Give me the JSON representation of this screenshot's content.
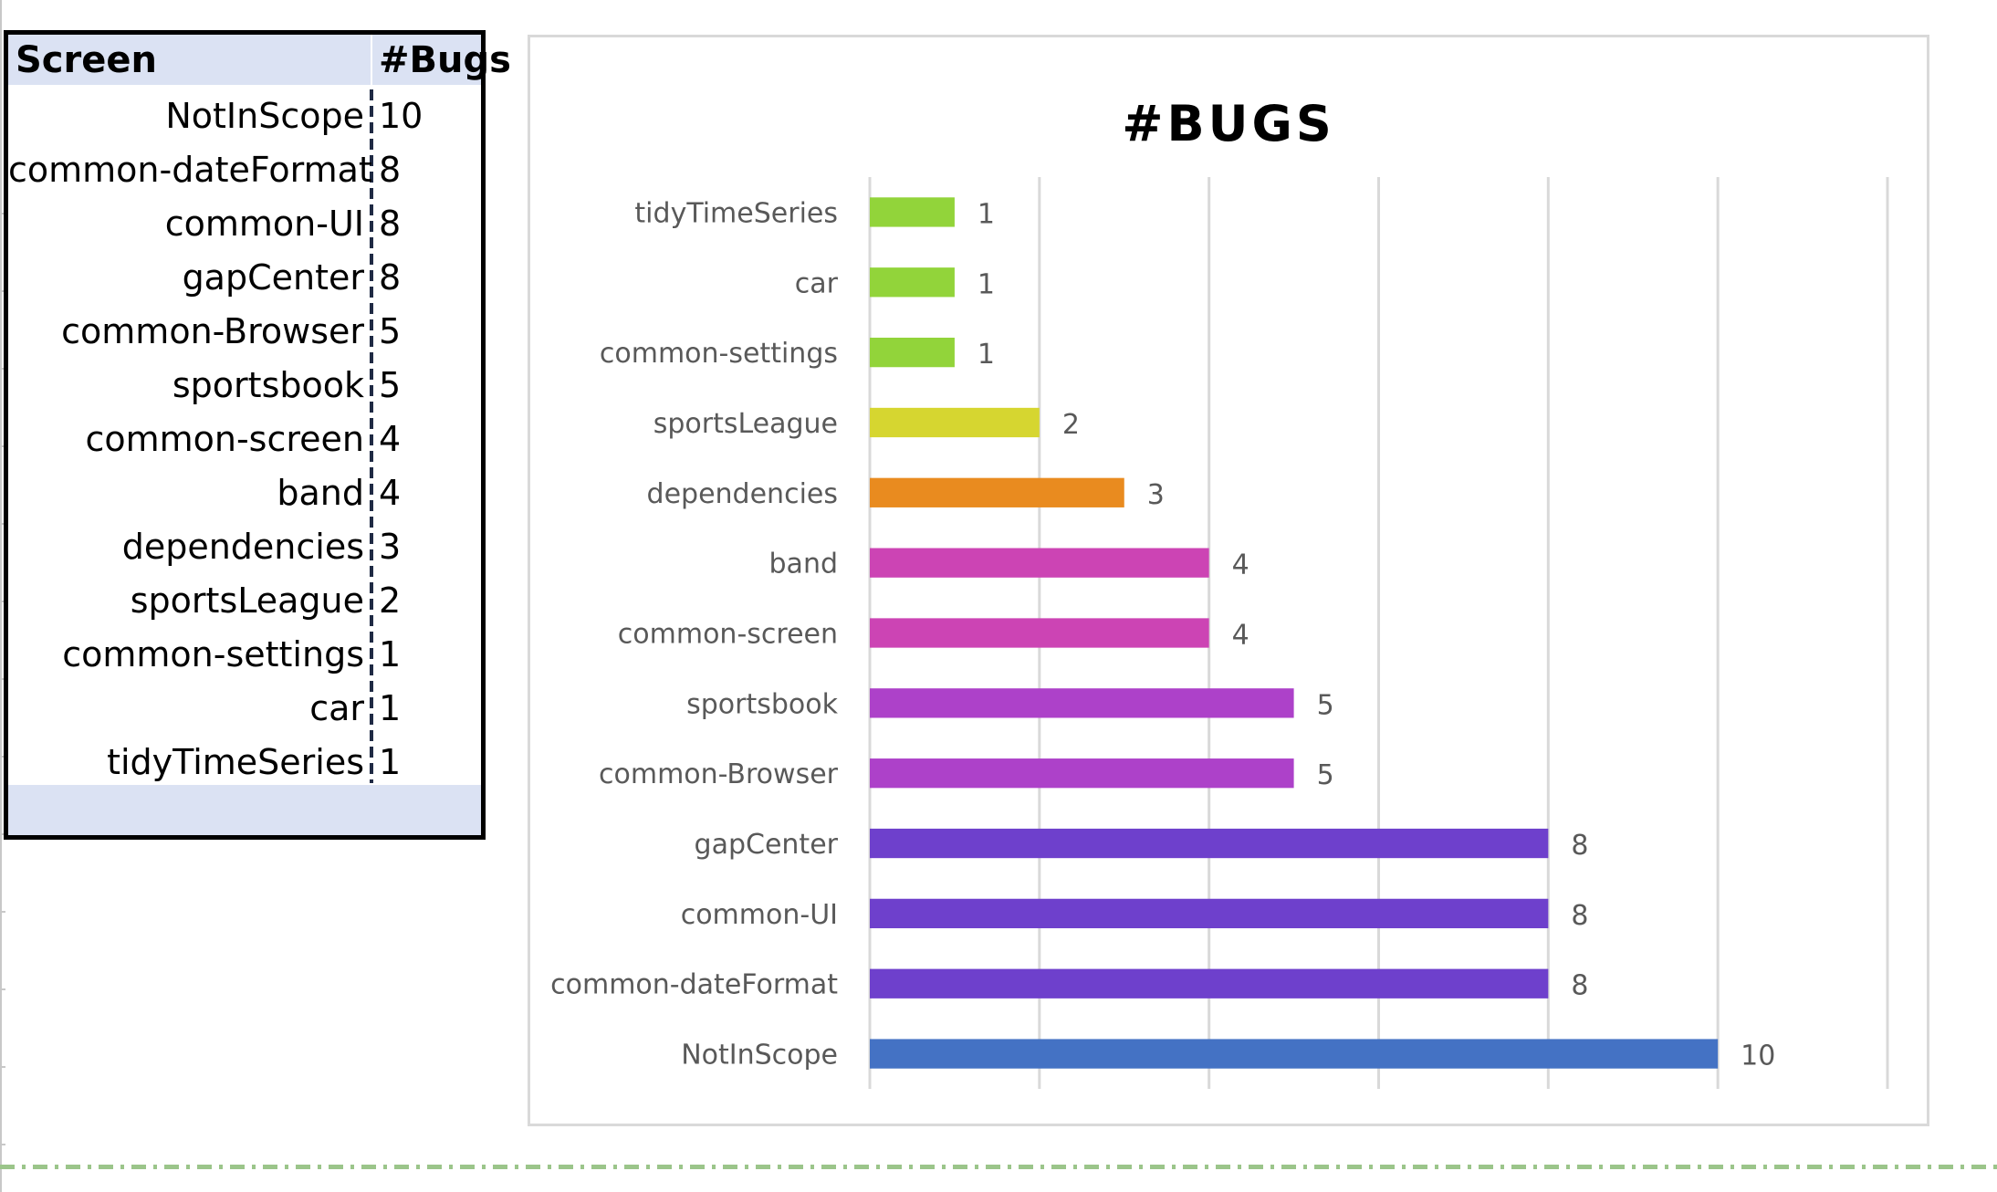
{
  "table": {
    "headers": {
      "screen": "Screen",
      "bugs": "#Bugs"
    },
    "rows": [
      {
        "screen": "NotInScope",
        "bugs": "10"
      },
      {
        "screen": "common-dateFormat",
        "bugs": "8"
      },
      {
        "screen": "common-UI",
        "bugs": "8"
      },
      {
        "screen": "gapCenter",
        "bugs": "8"
      },
      {
        "screen": "common-Browser",
        "bugs": "5"
      },
      {
        "screen": "sportsbook",
        "bugs": "5"
      },
      {
        "screen": "common-screen",
        "bugs": "4"
      },
      {
        "screen": "band",
        "bugs": "4"
      },
      {
        "screen": "dependencies",
        "bugs": "3"
      },
      {
        "screen": "sportsLeague",
        "bugs": "2"
      },
      {
        "screen": "common-settings",
        "bugs": "1"
      },
      {
        "screen": "car",
        "bugs": "1"
      },
      {
        "screen": "tidyTimeSeries",
        "bugs": "1"
      }
    ]
  },
  "chart_data": {
    "type": "bar",
    "orientation": "horizontal",
    "title": "#BUGS",
    "xlabel": "",
    "ylabel": "",
    "categories": [
      "tidyTimeSeries",
      "car",
      "common-settings",
      "sportsLeague",
      "dependencies",
      "band",
      "common-screen",
      "sportsbook",
      "common-Browser",
      "gapCenter",
      "common-UI",
      "common-dateFormat",
      "NotInScope"
    ],
    "values": [
      1,
      1,
      1,
      2,
      3,
      4,
      4,
      5,
      5,
      8,
      8,
      8,
      10
    ],
    "colors": [
      "#92d43a",
      "#92d43a",
      "#92d43a",
      "#d6d630",
      "#e98b1f",
      "#cc44b4",
      "#cc44b4",
      "#ad41c9",
      "#ad41c9",
      "#6e40cc",
      "#6e40cc",
      "#6e40cc",
      "#4472c4"
    ],
    "xlim": [
      0,
      12
    ],
    "grid": true,
    "data_labels": true,
    "legend": "none"
  }
}
